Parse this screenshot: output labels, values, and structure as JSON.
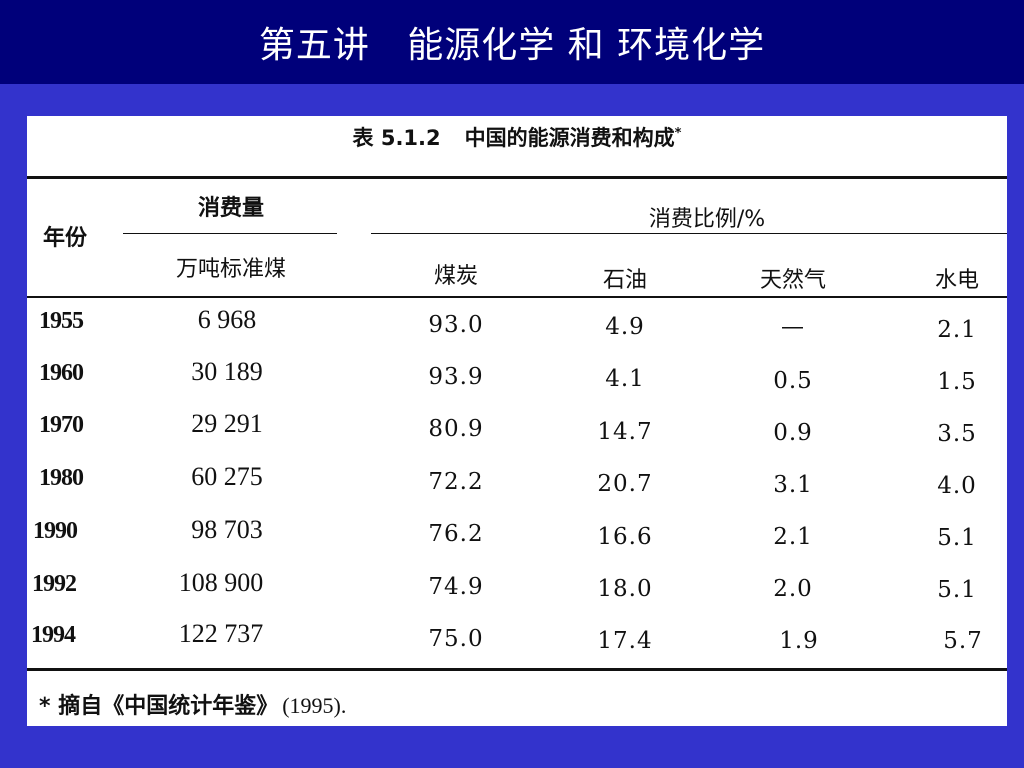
{
  "slide": {
    "title": "第五讲   能源化学 和 环境化学"
  },
  "table": {
    "caption_number": "表 5.1.2",
    "caption_title": "中国的能源消费和构成",
    "caption_mark": "*",
    "header": {
      "year": "年份",
      "consumption": "消费量",
      "consumption_unit": "万吨标准煤",
      "ratio": "消费比例/%",
      "coal": "煤炭",
      "oil": "石油",
      "gas": "天然气",
      "hydro": "水电"
    },
    "rows": [
      {
        "year": "1955",
        "amount": "6 968",
        "coal": "93.0",
        "oil": "4.9",
        "gas": "—",
        "hydro": "2.1"
      },
      {
        "year": "1960",
        "amount": "30 189",
        "coal": "93.9",
        "oil": "4.1",
        "gas": "0.5",
        "hydro": "1.5"
      },
      {
        "year": "1970",
        "amount": "29 291",
        "coal": "80.9",
        "oil": "14.7",
        "gas": "0.9",
        "hydro": "3.5"
      },
      {
        "year": "1980",
        "amount": "60 275",
        "coal": "72.2",
        "oil": "20.7",
        "gas": "3.1",
        "hydro": "4.0"
      },
      {
        "year": "1990",
        "amount": "98 703",
        "coal": "76.2",
        "oil": "16.6",
        "gas": "2.1",
        "hydro": "5.1"
      },
      {
        "year": "1992",
        "amount": "108 900",
        "coal": "74.9",
        "oil": "18.0",
        "gas": "2.0",
        "hydro": "5.1"
      },
      {
        "year": "1994",
        "amount": "122 737",
        "coal": "75.0",
        "oil": "17.4",
        "gas": "1.9",
        "hydro": "5.7"
      }
    ],
    "footnote_mark": "*",
    "footnote_text": "摘自《中国统计年鉴》",
    "footnote_source": "(1995)."
  },
  "colors": {
    "background": "#3333cc",
    "title_bar": "#00007a",
    "title_text": "#ffffff"
  }
}
